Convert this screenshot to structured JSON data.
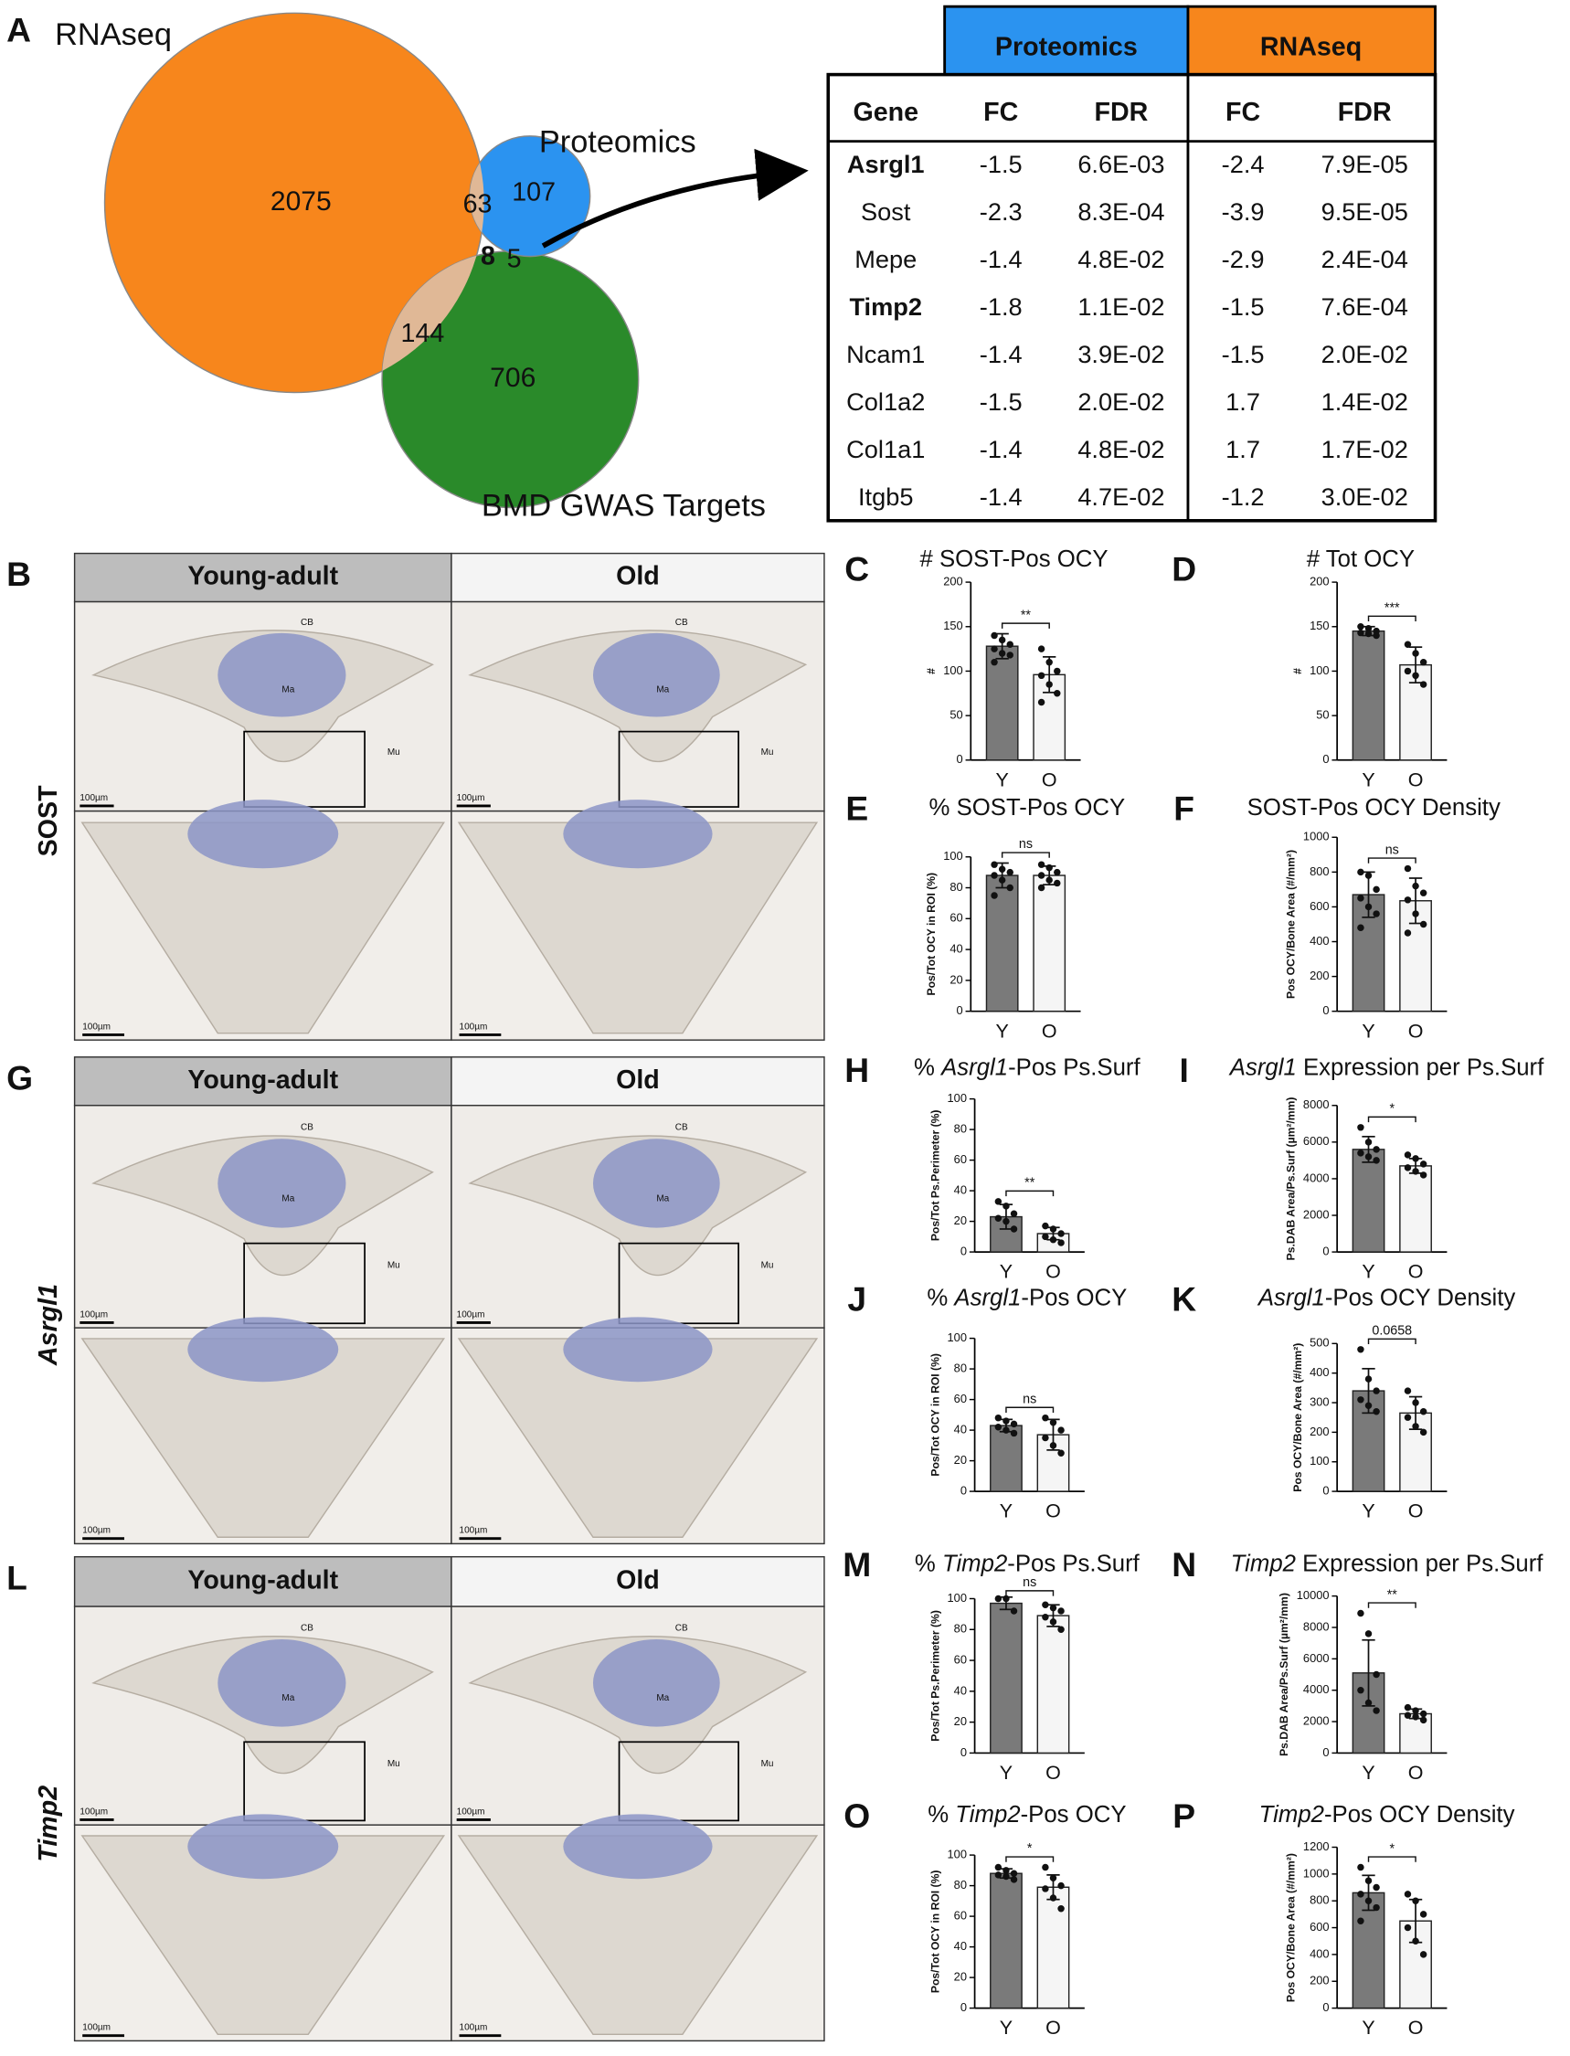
{
  "panel_a": {
    "letter": "A",
    "venn": {
      "sets": [
        "RNAseq",
        "Proteomics",
        "BMD GWAS Targets"
      ],
      "counts": {
        "rnaseq_only": 2075,
        "rnaseq_proteomics": 63,
        "proteomics_only": 107,
        "all_three": 8,
        "proteomics_gwas": 5,
        "rnaseq_gwas": 144,
        "gwas_only": 706
      }
    },
    "table": {
      "groups": [
        "Proteomics",
        "RNAseq"
      ],
      "header": [
        "Gene",
        "FC",
        "FDR",
        "FC",
        "FDR"
      ],
      "rows": [
        [
          "Asrgl1",
          "-1.5",
          "6.6E-03",
          "-2.4",
          "7.9E-05"
        ],
        [
          "Sost",
          "-2.3",
          "8.3E-04",
          "-3.9",
          "9.5E-05"
        ],
        [
          "Mepe",
          "-1.4",
          "4.8E-02",
          "-2.9",
          "2.4E-04"
        ],
        [
          "Timp2",
          "-1.8",
          "1.1E-02",
          "-1.5",
          "7.6E-04"
        ],
        [
          "Ncam1",
          "-1.4",
          "3.9E-02",
          "-1.5",
          "2.0E-02"
        ],
        [
          "Col1a2",
          "-1.5",
          "2.0E-02",
          "1.7",
          "1.4E-02"
        ],
        [
          "Col1a1",
          "-1.4",
          "4.8E-02",
          "1.7",
          "1.7E-02"
        ],
        [
          "Itgb5",
          "-1.4",
          "4.7E-02",
          "-1.2",
          "3.0E-02"
        ]
      ],
      "bold_rows": [
        0,
        3
      ]
    }
  },
  "histology": [
    {
      "letter": "B",
      "gene": "SOST",
      "gene_italic": false,
      "columns": [
        "Young-adult",
        "Old"
      ],
      "region_labels": [
        "CB",
        "Ma",
        "Mu"
      ],
      "scale_bar": "100µm"
    },
    {
      "letter": "G",
      "gene": "Asrgl1",
      "gene_italic": true,
      "columns": [
        "Young-adult",
        "Old"
      ],
      "region_labels": [
        "CB",
        "Ma",
        "Mu"
      ],
      "scale_bar": "100µm"
    },
    {
      "letter": "L",
      "gene": "Timp2",
      "gene_italic": true,
      "columns": [
        "Young-adult",
        "Old"
      ],
      "region_labels": [
        "CB",
        "Ma",
        "Mu"
      ],
      "scale_bar": "100µm"
    }
  ],
  "charts": [
    {
      "type": "bar",
      "letter": "C",
      "title": [
        "# SOST-Pos OCY"
      ],
      "ylabel": "#",
      "categories": [
        "Y",
        "O"
      ],
      "values": [
        128,
        96
      ],
      "errors": [
        14,
        20
      ],
      "points": [
        [
          140,
          135,
          130,
          125,
          120,
          118,
          110
        ],
        [
          125,
          110,
          100,
          95,
          85,
          75,
          65
        ]
      ],
      "colors": [
        "#7a7a7a",
        "#f5f5f5"
      ],
      "ylim": [
        0,
        200
      ],
      "yticks": [
        0,
        50,
        100,
        150,
        200
      ],
      "significance": "**"
    },
    {
      "type": "bar",
      "letter": "D",
      "title": [
        "# Tot OCY"
      ],
      "ylabel": "#",
      "categories": [
        "Y",
        "O"
      ],
      "values": [
        145,
        107
      ],
      "errors": [
        5,
        20
      ],
      "points": [
        [
          150,
          148,
          145,
          143,
          142,
          140
        ],
        [
          130,
          120,
          110,
          100,
          95,
          85
        ]
      ],
      "colors": [
        "#7a7a7a",
        "#f5f5f5"
      ],
      "ylim": [
        0,
        200
      ],
      "yticks": [
        0,
        50,
        100,
        150,
        200
      ],
      "significance": "***"
    },
    {
      "type": "bar",
      "letter": "E",
      "title": [
        "% SOST-Pos OCY"
      ],
      "ylabel": "Pos/Tot OCY in ROI (%)",
      "categories": [
        "Y",
        "O"
      ],
      "values": [
        88,
        88
      ],
      "errors": [
        8,
        6
      ],
      "points": [
        [
          95,
          92,
          90,
          88,
          85,
          80,
          75
        ],
        [
          95,
          93,
          90,
          88,
          85,
          83,
          80
        ]
      ],
      "colors": [
        "#7a7a7a",
        "#f5f5f5"
      ],
      "ylim": [
        0,
        100
      ],
      "yticks": [
        0,
        20,
        40,
        60,
        80,
        100
      ],
      "significance": "ns"
    },
    {
      "type": "bar",
      "letter": "F",
      "title": [
        "SOST-Pos OCY Density"
      ],
      "ylabel": "Pos OCY/Bone Area (#/mm²)",
      "categories": [
        "Y",
        "O"
      ],
      "values": [
        670,
        635
      ],
      "errors": [
        130,
        130
      ],
      "points": [
        [
          800,
          780,
          700,
          650,
          600,
          560,
          480
        ],
        [
          820,
          720,
          680,
          640,
          560,
          500,
          450
        ]
      ],
      "colors": [
        "#7a7a7a",
        "#f5f5f5"
      ],
      "ylim": [
        0,
        1000
      ],
      "yticks": [
        0,
        200,
        400,
        600,
        800,
        1000
      ],
      "significance": "ns"
    },
    {
      "type": "bar",
      "letter": "H",
      "title": [
        "% ",
        "Asrgl1",
        "-Pos Ps.Surf"
      ],
      "title_italic": 1,
      "ylabel": "Pos/Tot Ps.Perimeter (%)",
      "categories": [
        "Y",
        "O"
      ],
      "values": [
        23,
        12
      ],
      "errors": [
        8,
        4
      ],
      "points": [
        [
          33,
          30,
          25,
          22,
          20,
          15
        ],
        [
          17,
          15,
          12,
          10,
          8,
          6
        ]
      ],
      "colors": [
        "#7a7a7a",
        "#f5f5f5"
      ],
      "ylim": [
        0,
        100
      ],
      "yticks": [
        0,
        20,
        40,
        60,
        80,
        100
      ],
      "significance": "**"
    },
    {
      "type": "bar",
      "letter": "I",
      "title": [
        "Asrgl1",
        " Expression per Ps.Surf"
      ],
      "title_italic": 0,
      "ylabel": "Ps.DAB Area/Ps.Surf (µm²/mm)",
      "categories": [
        "Y",
        "O"
      ],
      "values": [
        5600,
        4700
      ],
      "errors": [
        700,
        400
      ],
      "points": [
        [
          6800,
          6000,
          5600,
          5400,
          5200,
          5000
        ],
        [
          5300,
          5100,
          4800,
          4600,
          4400,
          4200
        ]
      ],
      "colors": [
        "#7a7a7a",
        "#f5f5f5"
      ],
      "ylim": [
        0,
        8000
      ],
      "yticks": [
        0,
        2000,
        4000,
        6000,
        8000
      ],
      "significance": "*"
    },
    {
      "type": "bar",
      "letter": "J",
      "title": [
        "% ",
        "Asrgl1",
        "-Pos OCY"
      ],
      "title_italic": 1,
      "ylabel": "Pos/Tot OCY in ROI (%)",
      "categories": [
        "Y",
        "O"
      ],
      "values": [
        43,
        37
      ],
      "errors": [
        4,
        10
      ],
      "points": [
        [
          48,
          46,
          44,
          42,
          40,
          38
        ],
        [
          48,
          45,
          40,
          35,
          30,
          25
        ]
      ],
      "colors": [
        "#7a7a7a",
        "#f5f5f5"
      ],
      "ylim": [
        0,
        100
      ],
      "yticks": [
        0,
        20,
        40,
        60,
        80,
        100
      ],
      "significance": "ns"
    },
    {
      "type": "bar",
      "letter": "K",
      "title": [
        "Asrgl1",
        "-Pos OCY Density"
      ],
      "title_italic": 0,
      "ylabel": "Pos OCY/Bone Area (#/mm²)",
      "categories": [
        "Y",
        "O"
      ],
      "values": [
        340,
        265
      ],
      "errors": [
        75,
        55
      ],
      "points": [
        [
          480,
          380,
          340,
          310,
          290,
          270
        ],
        [
          340,
          300,
          270,
          250,
          220,
          200
        ]
      ],
      "colors": [
        "#7a7a7a",
        "#f5f5f5"
      ],
      "ylim": [
        0,
        500
      ],
      "yticks": [
        0,
        100,
        200,
        300,
        400,
        500
      ],
      "significance": "0.0658"
    },
    {
      "type": "bar",
      "letter": "M",
      "title": [
        "% ",
        "Timp2",
        "-Pos Ps.Surf"
      ],
      "title_italic": 1,
      "ylabel": "Pos/Tot Ps.Perimeter (%)",
      "categories": [
        "Y",
        "O"
      ],
      "values": [
        97,
        89
      ],
      "errors": [
        4,
        7
      ],
      "points": [
        [
          100,
          100,
          92
        ],
        [
          96,
          94,
          92,
          88,
          85,
          80
        ]
      ],
      "colors": [
        "#7a7a7a",
        "#f5f5f5"
      ],
      "ylim": [
        0,
        100
      ],
      "yticks": [
        0,
        20,
        40,
        60,
        80,
        100
      ],
      "significance": "ns"
    },
    {
      "type": "bar",
      "letter": "N",
      "title": [
        "Timp2",
        " Expression per Ps.Surf"
      ],
      "title_italic": 0,
      "ylabel": "Ps.DAB Area/Ps.Surf (µm²/mm)",
      "categories": [
        "Y",
        "O"
      ],
      "values": [
        5100,
        2500
      ],
      "errors": [
        2100,
        300
      ],
      "points": [
        [
          8900,
          7600,
          5000,
          4000,
          3200,
          2700
        ],
        [
          2900,
          2700,
          2500,
          2400,
          2300,
          2100
        ]
      ],
      "colors": [
        "#7a7a7a",
        "#f5f5f5"
      ],
      "ylim": [
        0,
        10000
      ],
      "yticks": [
        0,
        2000,
        4000,
        6000,
        8000,
        10000
      ],
      "significance": "**"
    },
    {
      "type": "bar",
      "letter": "O",
      "title": [
        "% ",
        "Timp2",
        "-Pos OCY"
      ],
      "title_italic": 1,
      "ylabel": "Pos/Tot OCY in ROI (%)",
      "categories": [
        "Y",
        "O"
      ],
      "values": [
        88,
        79
      ],
      "errors": [
        3,
        8
      ],
      "points": [
        [
          92,
          90,
          88,
          87,
          86,
          84
        ],
        [
          92,
          85,
          80,
          78,
          72,
          65
        ]
      ],
      "colors": [
        "#7a7a7a",
        "#f5f5f5"
      ],
      "ylim": [
        0,
        100
      ],
      "yticks": [
        0,
        20,
        40,
        60,
        80,
        100
      ],
      "significance": "*"
    },
    {
      "type": "bar",
      "letter": "P",
      "title": [
        "Timp2",
        "-Pos OCY Density"
      ],
      "title_italic": 0,
      "ylabel": "Pos OCY/Bone Area (#/mm²)",
      "categories": [
        "Y",
        "O"
      ],
      "values": [
        860,
        650
      ],
      "errors": [
        130,
        160
      ],
      "points": [
        [
          1050,
          950,
          900,
          850,
          800,
          750,
          650
        ],
        [
          850,
          800,
          700,
          600,
          500,
          400
        ]
      ],
      "colors": [
        "#7a7a7a",
        "#f5f5f5"
      ],
      "ylim": [
        0,
        1200
      ],
      "yticks": [
        0,
        200,
        400,
        600,
        800,
        1000,
        1200
      ],
      "significance": "*"
    }
  ]
}
